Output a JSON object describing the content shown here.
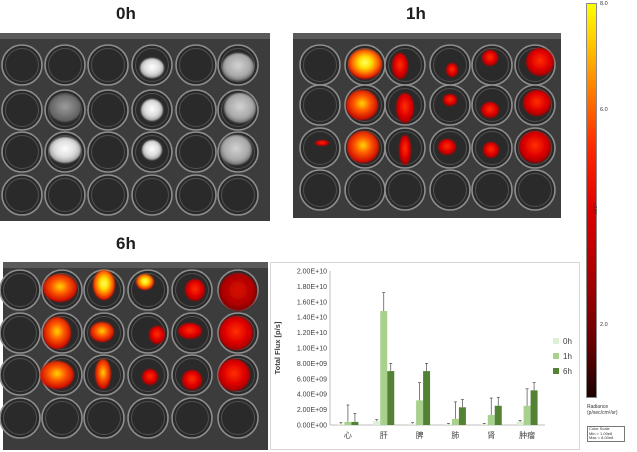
{
  "panels": {
    "t0": "0h",
    "t1": "1h",
    "t6": "6h"
  },
  "colorbar": {
    "labels": {
      "top": "8.0",
      "mid": "6.0",
      "exp": "x10⁸",
      "low": "2.0"
    },
    "unit_name": "Radiance",
    "unit": "(p/sec/cm²/sr)",
    "scale_box": {
      "title": "Color Scale",
      "min": "Min = 1.00e8",
      "max": "Max = 8.00e8"
    },
    "gradient": [
      "#ffff00",
      "#ff8a00",
      "#ff2a00",
      "#a80000",
      "#1c0000"
    ]
  },
  "chart_data": {
    "type": "bar",
    "categories": [
      "心",
      "肝",
      "脾",
      "肺",
      "肾",
      "肿瘤"
    ],
    "series": [
      {
        "name": "0h",
        "values": [
          100000000.0,
          500000000.0,
          200000000.0,
          100000000.0,
          100000000.0,
          400000000.0
        ],
        "errors": [
          200000000.0,
          200000000.0,
          100000000.0,
          100000000.0,
          100000000.0,
          200000000.0
        ]
      },
      {
        "name": "1h",
        "values": [
          400000000.0,
          14800000000.0,
          3200000000.0,
          800000000.0,
          1300000000.0,
          2500000000.0
        ],
        "errors": [
          2200000000.0,
          2400000000.0,
          2300000000.0,
          2200000000.0,
          2200000000.0,
          2200000000.0
        ]
      },
      {
        "name": "6h",
        "values": [
          400000000.0,
          7000000000.0,
          7000000000.0,
          2300000000.0,
          2500000000.0,
          4500000000.0
        ],
        "errors": [
          1100000000.0,
          1000000000.0,
          1000000000.0,
          1000000000.0,
          1100000000.0,
          1000000000.0
        ]
      }
    ],
    "colors": {
      "0h": "#dfeed6",
      "1h": "#a9d18e",
      "6h": "#548235"
    },
    "ylabel": "Total Flux [p/s]",
    "xlabel": "",
    "ylim": [
      0,
      20000000000.0
    ],
    "yticks": [
      "0.00E+00",
      "2.00E+09",
      "4.00E+09",
      "6.00E+09",
      "8.00E+09",
      "1.00E+10",
      "1.20E+10",
      "1.40E+10",
      "1.60E+10",
      "1.80E+10",
      "2.00E+10"
    ],
    "legend": "right",
    "grid": false
  }
}
